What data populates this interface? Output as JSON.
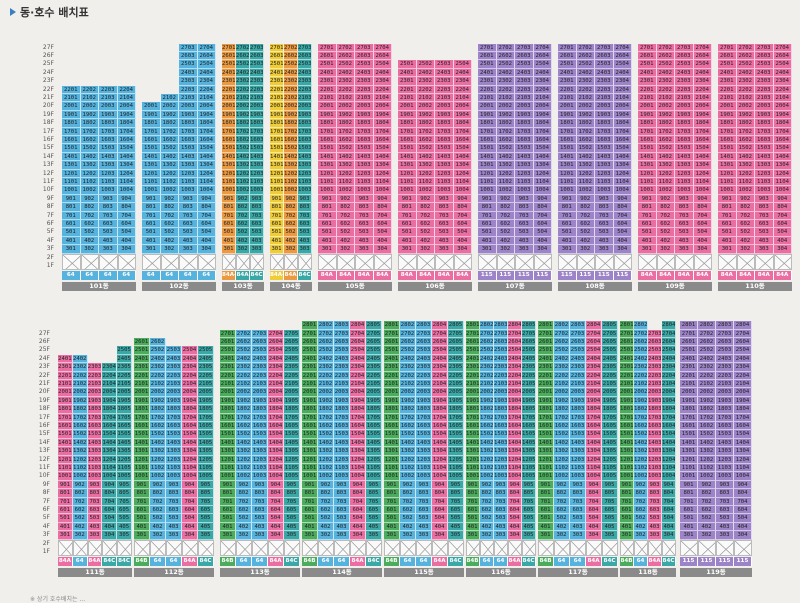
{
  "title": "동·호수 배치표",
  "footnote": "※ 상기 호수배치는 ...",
  "colors": {
    "blue": "#55b3de",
    "pink": "#ea6ea2",
    "orange": "#eb9a42",
    "yellow": "#efcd38",
    "green": "#4aac5c",
    "purple": "#9d83c8",
    "teal": "#3ba8a8"
  },
  "rows": [
    {
      "floors_visible": 27,
      "buildings": [
        {
          "name": "101동",
          "columns": [
            {
              "unit": 1,
              "top": 22,
              "color": "blue",
              "type": "64"
            },
            {
              "unit": 2,
              "top": 22,
              "color": "blue",
              "type": "64"
            },
            {
              "unit": 3,
              "top": 22,
              "color": "blue",
              "type": "64"
            },
            {
              "unit": 4,
              "top": 22,
              "color": "blue",
              "type": "64"
            }
          ]
        },
        {
          "name": "102동",
          "columns": [
            {
              "unit": 1,
              "top": 20,
              "color": "blue",
              "type": "64"
            },
            {
              "unit": 2,
              "top": 21,
              "color": "blue",
              "type": "64"
            },
            {
              "unit": 3,
              "top": 27,
              "color": "blue",
              "type": "64"
            },
            {
              "unit": 4,
              "top": 27,
              "color": "blue",
              "type": "64"
            }
          ]
        },
        {
          "name": "103동",
          "columns": [
            {
              "unit": 1,
              "top": 27,
              "color": "orange",
              "type": "84A-1"
            },
            {
              "unit": 2,
              "top": 27,
              "color": "teal",
              "type": "84A"
            },
            {
              "unit": 3,
              "top": 27,
              "color": "teal",
              "type": "84C"
            }
          ]
        },
        {
          "name": "104동",
          "columns": [
            {
              "unit": 1,
              "top": 27,
              "color": "yellow",
              "type": "84A-1"
            },
            {
              "unit": 2,
              "top": 27,
              "color": "orange",
              "type": "84A"
            },
            {
              "unit": 3,
              "top": 27,
              "color": "teal",
              "type": "84C"
            }
          ]
        },
        {
          "name": "105동",
          "columns": [
            {
              "unit": 1,
              "top": 27,
              "color": "pink",
              "type": "84A"
            },
            {
              "unit": 2,
              "top": 27,
              "color": "pink",
              "type": "84A"
            },
            {
              "unit": 3,
              "top": 27,
              "color": "pink",
              "type": "84A"
            },
            {
              "unit": 4,
              "top": 27,
              "color": "pink",
              "type": "84A"
            }
          ]
        },
        {
          "name": "106동",
          "columns": [
            {
              "unit": 1,
              "top": 25,
              "color": "pink",
              "type": "84A"
            },
            {
              "unit": 2,
              "top": 25,
              "color": "pink",
              "type": "84A"
            },
            {
              "unit": 3,
              "top": 25,
              "color": "pink",
              "type": "84A"
            },
            {
              "unit": 4,
              "top": 25,
              "color": "pink",
              "type": "84A"
            }
          ]
        },
        {
          "name": "107동",
          "columns": [
            {
              "unit": 1,
              "top": 27,
              "color": "purple",
              "type": "115"
            },
            {
              "unit": 2,
              "top": 27,
              "color": "purple",
              "type": "115"
            },
            {
              "unit": 3,
              "top": 27,
              "color": "purple",
              "type": "115"
            },
            {
              "unit": 4,
              "top": 27,
              "color": "purple",
              "type": "115"
            }
          ]
        },
        {
          "name": "108동",
          "columns": [
            {
              "unit": 1,
              "top": 27,
              "color": "purple",
              "type": "115"
            },
            {
              "unit": 2,
              "top": 27,
              "color": "purple",
              "type": "115"
            },
            {
              "unit": 3,
              "top": 27,
              "color": "purple",
              "type": "115"
            },
            {
              "unit": 4,
              "top": 27,
              "color": "purple",
              "type": "115"
            }
          ]
        },
        {
          "name": "109동",
          "columns": [
            {
              "unit": 1,
              "top": 27,
              "color": "pink",
              "type": "84A"
            },
            {
              "unit": 2,
              "top": 27,
              "color": "pink",
              "type": "84A"
            },
            {
              "unit": 3,
              "top": 27,
              "color": "pink",
              "type": "84A"
            },
            {
              "unit": 4,
              "top": 27,
              "color": "pink",
              "type": "84A"
            }
          ]
        },
        {
          "name": "110동",
          "columns": [
            {
              "unit": 1,
              "top": 27,
              "color": "pink",
              "type": "84A"
            },
            {
              "unit": 2,
              "top": 27,
              "color": "pink",
              "type": "84A"
            },
            {
              "unit": 3,
              "top": 27,
              "color": "pink",
              "type": "84A"
            },
            {
              "unit": 4,
              "top": 27,
              "color": "pink",
              "type": "84A"
            }
          ]
        }
      ]
    },
    {
      "floors_visible": 27,
      "buildings": [
        {
          "name": "111동",
          "columns": [
            {
              "unit": 1,
              "top": 24,
              "color": "pink",
              "type": "84A"
            },
            {
              "unit": 2,
              "top": 24,
              "color": "blue",
              "type": "64"
            },
            {
              "unit": 3,
              "top": 23,
              "color": "pink",
              "type": "84A"
            },
            {
              "unit": 4,
              "top": 23,
              "color": "teal",
              "type": "84C"
            },
            {
              "unit": 5,
              "top": 25,
              "color": "teal",
              "type": "84C"
            }
          ]
        },
        {
          "name": "112동",
          "columns": [
            {
              "unit": 1,
              "top": 26,
              "color": "green",
              "type": "84B"
            },
            {
              "unit": 2,
              "top": 26,
              "color": "blue",
              "type": "64"
            },
            {
              "unit": 3,
              "top": 25,
              "color": "blue",
              "type": "64"
            },
            {
              "unit": 4,
              "top": 25,
              "color": "pink",
              "type": "84A"
            },
            {
              "unit": 5,
              "top": 25,
              "color": "teal",
              "type": "84C"
            }
          ]
        },
        {
          "name": "113동",
          "columns": [
            {
              "unit": 1,
              "top": 27,
              "color": "green",
              "type": "84B"
            },
            {
              "unit": 2,
              "top": 27,
              "color": "blue",
              "type": "64"
            },
            {
              "unit": 3,
              "top": 27,
              "color": "blue",
              "type": "64"
            },
            {
              "unit": 4,
              "top": 27,
              "color": "pink",
              "type": "84A"
            },
            {
              "unit": 5,
              "top": 27,
              "color": "teal",
              "type": "84C"
            }
          ]
        },
        {
          "name": "114동",
          "columns": [
            {
              "unit": 1,
              "top": 28,
              "color": "green",
              "type": "84B"
            },
            {
              "unit": 2,
              "top": 28,
              "color": "blue",
              "type": "64"
            },
            {
              "unit": 3,
              "top": 28,
              "color": "blue",
              "type": "64"
            },
            {
              "unit": 4,
              "top": 28,
              "color": "pink",
              "type": "84A"
            },
            {
              "unit": 5,
              "top": 28,
              "color": "teal",
              "type": "84C"
            }
          ]
        },
        {
          "name": "115동",
          "columns": [
            {
              "unit": 1,
              "top": 28,
              "color": "green",
              "type": "84B"
            },
            {
              "unit": 2,
              "top": 28,
              "color": "blue",
              "type": "64"
            },
            {
              "unit": 3,
              "top": 28,
              "color": "blue",
              "type": "64"
            },
            {
              "unit": 4,
              "top": 28,
              "color": "pink",
              "type": "84A"
            },
            {
              "unit": 5,
              "top": 28,
              "color": "teal",
              "type": "84C"
            }
          ]
        },
        {
          "name": "116동",
          "columns": [
            {
              "unit": 1,
              "top": 28,
              "color": "green",
              "type": "84B"
            },
            {
              "unit": 2,
              "top": 28,
              "color": "blue",
              "type": "64"
            },
            {
              "unit": 3,
              "top": 28,
              "color": "blue",
              "type": "64"
            },
            {
              "unit": 4,
              "top": 28,
              "color": "pink",
              "type": "84A"
            },
            {
              "unit": 5,
              "top": 28,
              "color": "teal",
              "type": "84C"
            }
          ]
        },
        {
          "name": "117동",
          "columns": [
            {
              "unit": 1,
              "top": 28,
              "color": "green",
              "type": "84B"
            },
            {
              "unit": 2,
              "top": 28,
              "color": "blue",
              "type": "64"
            },
            {
              "unit": 3,
              "top": 28,
              "color": "blue",
              "type": "64"
            },
            {
              "unit": 4,
              "top": 28,
              "color": "pink",
              "type": "84A"
            },
            {
              "unit": 5,
              "top": 28,
              "color": "teal",
              "type": "84C"
            }
          ]
        },
        {
          "name": "118동",
          "columns": [
            {
              "unit": 1,
              "top": 28,
              "color": "green",
              "type": "84B"
            },
            {
              "unit": 2,
              "top": 28,
              "color": "blue",
              "type": "64"
            },
            {
              "unit": 3,
              "top": 27,
              "color": "pink",
              "type": "84A"
            },
            {
              "unit": 4,
              "top": 28,
              "color": "teal",
              "type": "84C"
            }
          ]
        },
        {
          "name": "119동",
          "columns": [
            {
              "unit": 1,
              "top": 28,
              "color": "purple",
              "type": "115"
            },
            {
              "unit": 2,
              "top": 28,
              "color": "purple",
              "type": "115"
            },
            {
              "unit": 3,
              "top": 28,
              "color": "purple",
              "type": "115"
            },
            {
              "unit": 4,
              "top": 28,
              "color": "purple",
              "type": "115"
            }
          ]
        }
      ]
    }
  ],
  "floor_labels": [
    "27F",
    "26F",
    "25F",
    "24F",
    "23F",
    "22F",
    "21F",
    "20F",
    "19F",
    "18F",
    "17F",
    "16F",
    "15F",
    "14F",
    "13F",
    "12F",
    "11F",
    "10F",
    "9F",
    "8F",
    "7F",
    "6F",
    "5F",
    "4F",
    "3F",
    "2F",
    "1F"
  ]
}
